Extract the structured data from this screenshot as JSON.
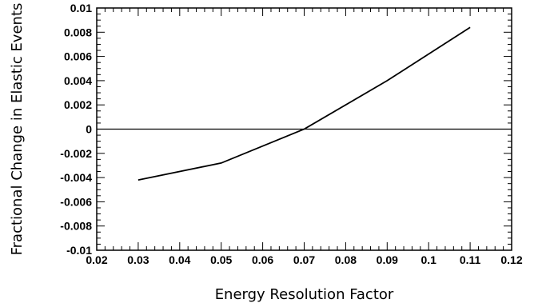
{
  "chart_data": {
    "type": "line",
    "title": "",
    "xlabel": "Energy Resolution Factor",
    "ylabel": "Fractional Change in Elastic Events",
    "xlim": [
      0.02,
      0.12
    ],
    "ylim": [
      -0.01,
      0.01
    ],
    "x_ticks": [
      0.02,
      0.03,
      0.04,
      0.05,
      0.06,
      0.07,
      0.08,
      0.09,
      0.1,
      0.11,
      0.12
    ],
    "x_tick_labels": [
      "0.02",
      "0.03",
      "0.04",
      "0.05",
      "0.06",
      "0.07",
      "0.08",
      "0.09",
      "0.1",
      "0.11",
      "0.12"
    ],
    "y_ticks": [
      -0.01,
      -0.008,
      -0.006,
      -0.004,
      -0.002,
      0,
      0.002,
      0.004,
      0.006,
      0.008,
      0.01
    ],
    "y_tick_labels": [
      "-0.01",
      "-0.008",
      "-0.006",
      "-0.004",
      "-0.002",
      "0",
      "0.002",
      "0.004",
      "0.006",
      "0.008",
      "0.01"
    ],
    "grid": false,
    "reference_line_y": 0,
    "series": [
      {
        "x": [
          0.03,
          0.05,
          0.07,
          0.09,
          0.11
        ],
        "values": [
          -0.0042,
          -0.0028,
          0.0,
          0.004,
          0.0084
        ],
        "color": "#000000"
      }
    ]
  }
}
